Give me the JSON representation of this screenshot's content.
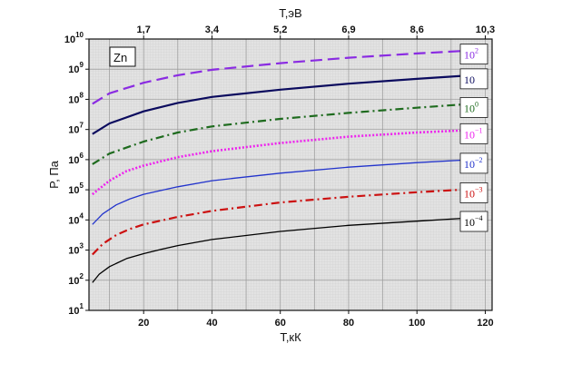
{
  "chart_data": {
    "type": "line",
    "annotation": "Zn",
    "xlabel": "T,кК",
    "ylabel": "P, Па",
    "top_xlabel": "T,эВ",
    "xlim": [
      4,
      122
    ],
    "ylim_log10": [
      1,
      10
    ],
    "y_scale": "log",
    "grid": true,
    "x_ticks": [
      20,
      40,
      60,
      80,
      100,
      120
    ],
    "top_ticks": [
      {
        "label": "1,7",
        "value_kK": 20
      },
      {
        "label": "3,4",
        "value_kK": 40
      },
      {
        "label": "5,2",
        "value_kK": 60
      },
      {
        "label": "6,9",
        "value_kK": 80
      },
      {
        "label": "8,6",
        "value_kK": 100
      },
      {
        "label": "10,3",
        "value_kK": 120
      }
    ],
    "y_ticks": [
      {
        "base": "10",
        "exp": "1",
        "log": 1
      },
      {
        "base": "10",
        "exp": "2",
        "log": 2
      },
      {
        "base": "10",
        "exp": "3",
        "log": 3
      },
      {
        "base": "10",
        "exp": "4",
        "log": 4
      },
      {
        "base": "10",
        "exp": "5",
        "log": 5
      },
      {
        "base": "10",
        "exp": "6",
        "log": 6
      },
      {
        "base": "10",
        "exp": "7",
        "log": 7
      },
      {
        "base": "10",
        "exp": "8",
        "log": 8
      },
      {
        "base": "10",
        "exp": "9",
        "log": 9
      },
      {
        "base": "10",
        "exp": "10",
        "log": 10
      }
    ],
    "series": [
      {
        "base": "10",
        "exp": "2",
        "color": "#8a2be2",
        "dash": "long",
        "width": 2.2,
        "x": [
          5,
          10,
          20,
          30,
          40,
          60,
          80,
          100,
          116
        ],
        "log10_p": [
          7.85,
          8.2,
          8.55,
          8.8,
          8.98,
          9.2,
          9.38,
          9.52,
          9.62
        ]
      },
      {
        "base": "10",
        "exp": "",
        "color": "#0b0b5e",
        "dash": "solid",
        "width": 2.2,
        "x": [
          5,
          10,
          20,
          30,
          40,
          60,
          80,
          100,
          116
        ],
        "log10_p": [
          6.85,
          7.2,
          7.6,
          7.88,
          8.08,
          8.32,
          8.52,
          8.68,
          8.8
        ]
      },
      {
        "base": "10",
        "exp": "0",
        "color": "#1e6b1e",
        "dash": "dashdot",
        "width": 2.2,
        "x": [
          5,
          10,
          20,
          30,
          40,
          60,
          80,
          100,
          116
        ],
        "log10_p": [
          5.85,
          6.2,
          6.6,
          6.9,
          7.1,
          7.35,
          7.55,
          7.72,
          7.85
        ]
      },
      {
        "base": "10",
        "exp": "−1",
        "color": "#ee22ee",
        "dash": "dotted",
        "width": 2.6,
        "x": [
          5,
          10,
          15,
          20,
          30,
          40,
          60,
          80,
          100,
          116
        ],
        "log10_p": [
          4.85,
          5.3,
          5.62,
          5.8,
          6.08,
          6.28,
          6.55,
          6.76,
          6.9,
          6.98
        ]
      },
      {
        "base": "10",
        "exp": "−2",
        "color": "#2233cc",
        "dash": "solid",
        "width": 1.3,
        "x": [
          5,
          8,
          12,
          16,
          20,
          30,
          40,
          60,
          80,
          100,
          116
        ],
        "log10_p": [
          3.85,
          4.2,
          4.5,
          4.7,
          4.85,
          5.1,
          5.3,
          5.55,
          5.75,
          5.9,
          6.0
        ]
      },
      {
        "base": "10",
        "exp": "−3",
        "color": "#cc1111",
        "dash": "dashdot",
        "width": 2.2,
        "x": [
          5,
          8,
          12,
          16,
          20,
          30,
          40,
          60,
          80,
          100,
          116
        ],
        "log10_p": [
          2.85,
          3.2,
          3.5,
          3.7,
          3.85,
          4.1,
          4.3,
          4.58,
          4.77,
          4.92,
          5.02
        ]
      },
      {
        "base": "10",
        "exp": "−4",
        "color": "#000000",
        "dash": "solid",
        "width": 1.3,
        "x": [
          5,
          7,
          10,
          15,
          20,
          25,
          30,
          40,
          60,
          80,
          100,
          116
        ],
        "log10_p": [
          1.92,
          2.2,
          2.45,
          2.72,
          2.88,
          3.02,
          3.15,
          3.35,
          3.62,
          3.82,
          3.96,
          4.07
        ]
      }
    ]
  }
}
